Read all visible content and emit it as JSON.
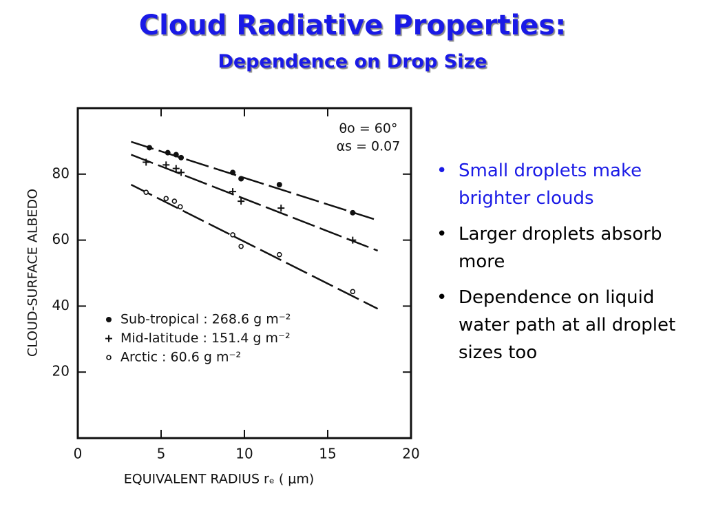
{
  "header": {
    "title": "Cloud Radiative Properties:",
    "subtitle": "Dependence on Drop Size"
  },
  "bullets": [
    "Small droplets make brighter clouds",
    "Larger droplets absorb more",
    "Dependence on liquid water path at all droplet sizes too"
  ],
  "chart_data": {
    "type": "scatter",
    "x_label": "EQUIVALENT RADIUS rₑ ( μm)",
    "y_label": "CLOUD-SURFACE ALBEDO",
    "annotations": [
      "θo = 60°",
      "αs = 0.07"
    ],
    "xlim": [
      0,
      20
    ],
    "xticks": [
      0,
      5,
      10,
      15,
      20
    ],
    "ylim": [
      0,
      100
    ],
    "yticks": [
      20,
      40,
      60,
      80
    ],
    "legend": "lower left",
    "series": [
      {
        "name": "Sub-tropical : 268.6 g m⁻²",
        "marker": "dot",
        "color": "#111111",
        "x": [
          4.3,
          5.4,
          5.9,
          6.2,
          9.3,
          9.8,
          12.1,
          16.5
        ],
        "values": [
          88,
          86.5,
          85.9,
          85,
          80.5,
          78.6,
          76.8,
          68.3
        ],
        "fit_x": [
          3.2,
          18
        ],
        "fit_values": [
          89.8,
          66
        ]
      },
      {
        "name": "Mid-latitude : 151.4 g m⁻²",
        "marker": "plus",
        "color": "#111111",
        "x": [
          4.1,
          5.3,
          5.9,
          6.2,
          9.3,
          9.8,
          12.2,
          16.5
        ],
        "values": [
          83.6,
          82.8,
          81.7,
          80.5,
          74.7,
          71.8,
          69.7,
          60
        ],
        "fit_x": [
          3.2,
          18
        ],
        "fit_values": [
          85.9,
          56.8
        ]
      },
      {
        "name": "Arctic : 60.6 g m⁻²",
        "marker": "circle",
        "color": "#111111",
        "x": [
          4.1,
          5.3,
          5.8,
          6.15,
          9.3,
          9.8,
          12.1,
          16.5
        ],
        "values": [
          74.5,
          72.6,
          71.8,
          70.1,
          61.6,
          58.1,
          55.6,
          44.4
        ],
        "fit_x": [
          3.2,
          18
        ],
        "fit_values": [
          76.8,
          39.2
        ]
      }
    ]
  }
}
